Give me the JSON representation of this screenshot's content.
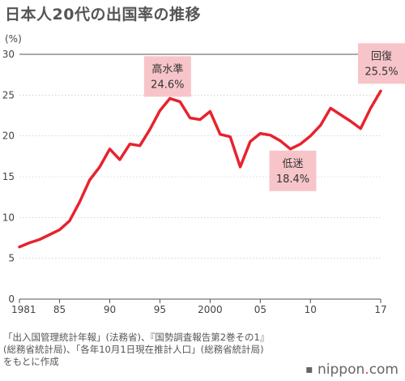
{
  "chart_data": {
    "type": "line",
    "title": "日本人20代の出国率の推移",
    "unit_label": "(%)",
    "ylim": [
      0,
      30
    ],
    "y_ticks": [
      0,
      5,
      10,
      15,
      20,
      25,
      30
    ],
    "xlim": [
      1981,
      2017
    ],
    "x_ticks": [
      {
        "value": 1981,
        "label": "1981"
      },
      {
        "value": 1985,
        "label": "85"
      },
      {
        "value": 1990,
        "label": "90"
      },
      {
        "value": 1995,
        "label": "95"
      },
      {
        "value": 2000,
        "label": "2000"
      },
      {
        "value": 2005,
        "label": "05"
      },
      {
        "value": 2010,
        "label": "10"
      },
      {
        "value": 2017,
        "label": "17"
      }
    ],
    "line_color": "#e8222e",
    "annotation_color": "#f7c5c9",
    "x": [
      1981,
      1982,
      1983,
      1984,
      1985,
      1986,
      1987,
      1988,
      1989,
      1990,
      1991,
      1992,
      1993,
      1994,
      1995,
      1996,
      1997,
      1998,
      1999,
      2000,
      2001,
      2002,
      2003,
      2004,
      2005,
      2006,
      2007,
      2008,
      2009,
      2010,
      2011,
      2012,
      2013,
      2014,
      2015,
      2016,
      2017
    ],
    "series": [
      {
        "values": [
          6.4,
          6.9,
          7.3,
          7.9,
          8.5,
          9.6,
          11.9,
          14.6,
          16.2,
          18.4,
          17.1,
          19.0,
          18.8,
          20.8,
          23.1,
          24.6,
          24.2,
          22.2,
          22.0,
          23.0,
          20.2,
          19.9,
          16.2,
          19.3,
          20.3,
          20.1,
          19.4,
          18.4,
          19.0,
          20.0,
          21.3,
          23.4,
          22.6,
          21.8,
          20.9,
          23.4,
          25.5
        ]
      }
    ],
    "annotations": [
      {
        "x": 1996,
        "value": 24.6,
        "label": "高水準",
        "value_label": "24.6%"
      },
      {
        "x": 2008,
        "value": 18.4,
        "label": "低迷",
        "value_label": "18.4%"
      },
      {
        "x": 2017,
        "value": 25.5,
        "label": "回復",
        "value_label": "25.5%"
      }
    ]
  },
  "source_text": "「出入国管理統計年報」(法務省)、『国勢調査報告第2巻その1』\n(総務省統計局)、「各年10月1日現在推計人口」(総務省統計局)\nをもとに作成",
  "brand": {
    "prefix": "nippon",
    "suffix": "com"
  }
}
